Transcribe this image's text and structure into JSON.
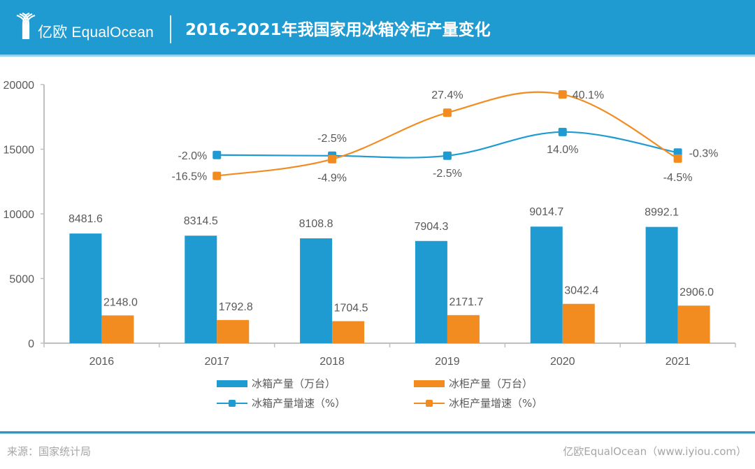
{
  "header": {
    "logo_text": "亿欧 EqualOcean",
    "title": "2016-2021年我国家用冰箱冷柜产量变化"
  },
  "colors": {
    "header_bg": "#1f9bd1",
    "fridge": "#1f9bd1",
    "freezer": "#f28c20",
    "text": "#595959",
    "axis": "#bfbfbf"
  },
  "chart_data": {
    "type": "bar+line",
    "title": "2016-2021年我国家用冰箱冷柜产量变化",
    "categories": [
      "2016",
      "2017",
      "2018",
      "2019",
      "2020",
      "2021"
    ],
    "ylim": [
      0,
      20000
    ],
    "yticks": [
      "0",
      "5000",
      "10000",
      "15000",
      "20000"
    ],
    "grid": false,
    "legend_position": "bottom",
    "series": [
      {
        "name": "冰箱产量（万台）",
        "type": "bar",
        "color": "#1f9bd1",
        "values": [
          8481.6,
          8314.5,
          8108.8,
          7904.3,
          9014.7,
          8992.1
        ],
        "labels": [
          "8481.6",
          "8314.5",
          "8108.8",
          "7904.3",
          "9014.7",
          "8992.1"
        ]
      },
      {
        "name": "冰柜产量（万台）",
        "type": "bar",
        "color": "#f28c20",
        "values": [
          2148.0,
          1792.8,
          1704.5,
          2171.7,
          3042.4,
          2906.0
        ],
        "labels": [
          "2148.0",
          "1792.8",
          "1704.5",
          "2171.7",
          "3042.4",
          "2906.0"
        ]
      },
      {
        "name": "冰箱产量增速（%）",
        "type": "line",
        "axis": "secondary",
        "color": "#1f9bd1",
        "values": [
          null,
          -2.0,
          -2.5,
          -2.5,
          14.0,
          -0.3
        ],
        "labels": [
          null,
          "-2.0%",
          "-2.5%",
          "-2.5%",
          "14.0%",
          "-0.3%"
        ]
      },
      {
        "name": "冰柜产量增速（%）",
        "type": "line",
        "axis": "secondary",
        "color": "#f28c20",
        "values": [
          null,
          -16.5,
          -4.9,
          27.4,
          40.1,
          -4.5
        ],
        "labels": [
          null,
          "-16.5%",
          "-4.9%",
          "27.4%",
          "40.1%",
          "-4.5%"
        ]
      }
    ]
  },
  "legend": [
    {
      "label": "冰箱产量（万台）",
      "kind": "bar",
      "color": "#1f9bd1"
    },
    {
      "label": "冰柜产量（万台）",
      "kind": "bar",
      "color": "#f28c20"
    },
    {
      "label": "冰箱产量增速（%）",
      "kind": "line",
      "color": "#1f9bd1"
    },
    {
      "label": "冰柜产量增速（%）",
      "kind": "line",
      "color": "#f28c20"
    }
  ],
  "footer": {
    "source": "来源：国家统计局",
    "credit": "亿欧EqualOcean（www.iyiou.com）"
  }
}
